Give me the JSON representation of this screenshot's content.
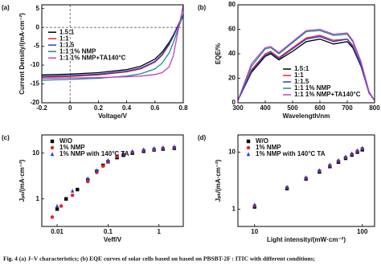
{
  "chart_data": [
    {
      "type": "line",
      "panel_label": "(a)",
      "xlabel": "Voltage/V",
      "ylabel": "Current Density/(mA·cm⁻²)",
      "xlim": [
        -0.2,
        0.8
      ],
      "ylim": [
        -20,
        6
      ],
      "xticks": [
        -0.2,
        0.0,
        0.2,
        0.4,
        0.6,
        0.8
      ],
      "yticks": [
        5,
        0,
        -5,
        -10,
        -15,
        -20
      ],
      "legend": "middle left",
      "x": [
        -0.2,
        0,
        0.2,
        0.4,
        0.5,
        0.6,
        0.65,
        0.7,
        0.73,
        0.76,
        0.8
      ],
      "series": [
        {
          "name": "1.5:1",
          "color": "#000000",
          "values": [
            -12.6,
            -12.4,
            -12.0,
            -11.2,
            -10.3,
            -8.4,
            -6.6,
            -4.0,
            -2.0,
            0.3,
            3.5
          ]
        },
        {
          "name": "1:1",
          "color": "#e8202a",
          "values": [
            -13.2,
            -13.0,
            -12.6,
            -11.8,
            -11.0,
            -9.2,
            -7.4,
            -4.6,
            -2.4,
            0,
            3.0
          ]
        },
        {
          "name": "1:1.5",
          "color": "#2a3fd0",
          "values": [
            -13.0,
            -12.8,
            -12.4,
            -11.6,
            -10.8,
            -9.0,
            -7.2,
            -4.4,
            -2.2,
            0.2,
            3.2
          ]
        },
        {
          "name": "1:1 1% NMP",
          "color": "#1a8a8a",
          "values": [
            -14.0,
            -13.8,
            -13.5,
            -12.9,
            -12.3,
            -11.0,
            -9.5,
            -6.8,
            -4.0,
            -0.8,
            3.5
          ]
        },
        {
          "name": "1:1 1% NMP+TA140°C",
          "color": "#c040c0",
          "values": [
            -13.5,
            -13.4,
            -13.3,
            -13.1,
            -12.9,
            -12.5,
            -12.0,
            -10.5,
            -7.5,
            -1.5,
            6
          ]
        }
      ]
    },
    {
      "type": "line",
      "panel_label": "(b)",
      "xlabel": "Wavelength/nm",
      "ylabel": "EQE/%",
      "xlim": [
        300,
        800
      ],
      "ylim": [
        0,
        80
      ],
      "xticks": [
        300,
        400,
        500,
        600,
        700,
        800
      ],
      "yticks": [
        0,
        20,
        40,
        60,
        80
      ],
      "legend": "lower center",
      "x": [
        300,
        350,
        400,
        420,
        450,
        500,
        550,
        600,
        650,
        700,
        720,
        750,
        780,
        800
      ],
      "series": [
        {
          "name": "1.5:1",
          "color": "#000000",
          "values": [
            2,
            25,
            38,
            40,
            35,
            42,
            50,
            52,
            48,
            50,
            45,
            30,
            8,
            2
          ]
        },
        {
          "name": "1:1",
          "color": "#e8202a",
          "values": [
            2,
            27,
            40,
            42,
            37,
            45,
            53,
            55,
            51,
            52,
            47,
            31,
            8,
            2
          ]
        },
        {
          "name": "1:1.5",
          "color": "#2a3fd0",
          "values": [
            2,
            26,
            39,
            41,
            36,
            44,
            52,
            54,
            50,
            52,
            46,
            31,
            8,
            2
          ]
        },
        {
          "name": "1:1 1% NMP",
          "color": "#1a8a8a",
          "values": [
            2,
            30,
            44,
            45,
            40,
            49,
            58,
            59,
            55,
            56,
            50,
            33,
            9,
            2
          ]
        },
        {
          "name": "1:1 1% NMP+TA140°C",
          "color": "#c040c0",
          "values": [
            2,
            32,
            45,
            46,
            41,
            50,
            59,
            60,
            56,
            57,
            51,
            34,
            9,
            2
          ]
        }
      ]
    },
    {
      "type": "scatter",
      "panel_label": "(c)",
      "xlabel": "Veff/V",
      "ylabel": "Jₚₕ/(mA·cm⁻²)",
      "log": true,
      "xlim": [
        0.005,
        3
      ],
      "ylim": [
        0.25,
        25
      ],
      "xticks": [
        0.01,
        0.1,
        1
      ],
      "yticks": [
        1,
        10
      ],
      "legend": "upper left",
      "series": [
        {
          "name": "W/O",
          "color": "#000000",
          "x": [
            0.01,
            0.015,
            0.025,
            0.04,
            0.06,
            0.08,
            0.1,
            0.15,
            0.2,
            0.3,
            0.5,
            0.8,
            1.2,
            2
          ],
          "values": [
            0.6,
            1.0,
            1.6,
            2.6,
            4,
            5.4,
            6.5,
            8,
            9,
            10,
            11,
            11.8,
            12.3,
            12.8
          ]
        },
        {
          "name": "1% NMP",
          "color": "#e8202a",
          "x": [
            0.008,
            0.012,
            0.02,
            0.04,
            0.06,
            0.08,
            0.1,
            0.15,
            0.2,
            0.3,
            0.5,
            0.8,
            1.2,
            2
          ],
          "values": [
            0.4,
            0.7,
            1.2,
            2.4,
            3.8,
            5.2,
            6.6,
            8.5,
            9.5,
            10.5,
            11.5,
            12.2,
            12.8,
            13.3
          ]
        },
        {
          "name": "1% NMP with 140°C TA",
          "color": "#2a3fd0",
          "x": [
            0.01,
            0.02,
            0.04,
            0.06,
            0.1,
            0.2,
            0.3,
            0.5,
            0.8,
            1.2,
            2
          ],
          "values": [
            0.7,
            1.5,
            2.8,
            4.2,
            7,
            10,
            11,
            12,
            12.8,
            13.3,
            13.8
          ]
        }
      ]
    },
    {
      "type": "scatter",
      "panel_label": "(d)",
      "xlabel": "Light intensity/(mW·cm⁻²)",
      "ylabel": "Jₚₕ/(mA·cm⁻²)",
      "log": true,
      "xlim": [
        7,
        130
      ],
      "ylim": [
        0.5,
        20
      ],
      "xticks": [
        10,
        100
      ],
      "yticks": [
        1,
        10
      ],
      "legend": "upper left",
      "series": [
        {
          "name": "W/O",
          "color": "#000000",
          "x": [
            10,
            20,
            30,
            40,
            50,
            60,
            70,
            80,
            90,
            100
          ],
          "values": [
            1.1,
            2.3,
            3.4,
            4.5,
            5.6,
            6.7,
            7.8,
            8.9,
            10,
            11
          ]
        },
        {
          "name": "1% NMP",
          "color": "#e8202a",
          "x": [
            10,
            20,
            30,
            40,
            50,
            60,
            70,
            80,
            90,
            100
          ],
          "values": [
            1.15,
            2.4,
            3.5,
            4.7,
            5.8,
            7,
            8.1,
            9.2,
            10.4,
            11.5
          ]
        },
        {
          "name": "1% NMP with 140°C TA",
          "color": "#2a3fd0",
          "x": [
            10,
            20,
            30,
            40,
            50,
            60,
            70,
            80,
            90,
            100
          ],
          "values": [
            1.2,
            2.45,
            3.6,
            4.8,
            6,
            7.2,
            8.3,
            9.5,
            10.7,
            11.8
          ]
        }
      ]
    }
  ],
  "caption": "Fig. 4   (a) J–V characteristics; (b) EQE curves of solar cells based on based on PBSBT-2F : ITIC with different conditions;"
}
